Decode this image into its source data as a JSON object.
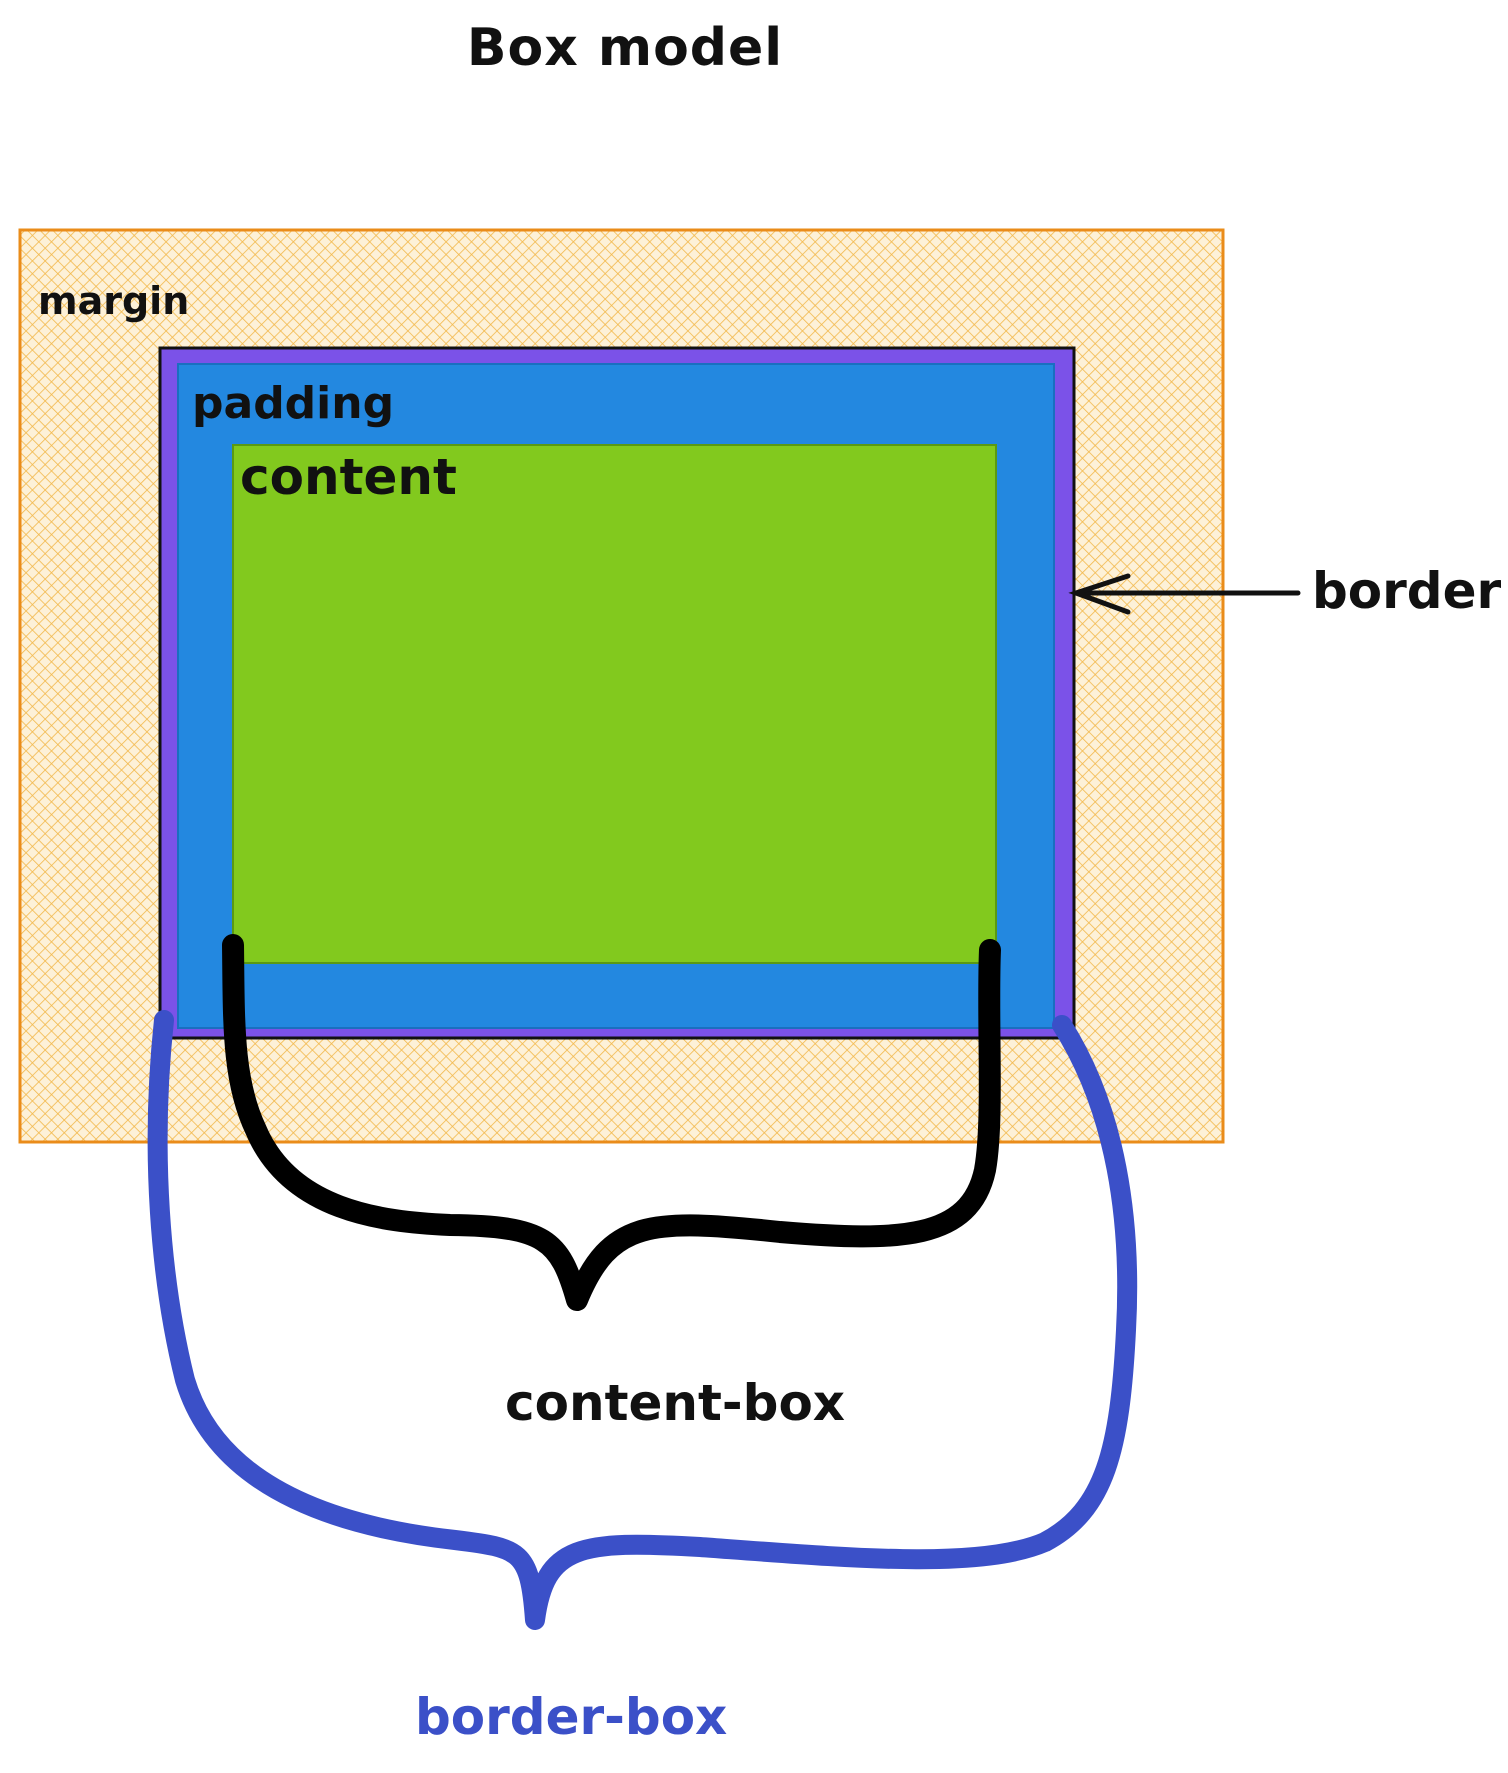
{
  "title": "Box model",
  "labels": {
    "margin": "margin",
    "padding": "padding",
    "content": "content",
    "border": "border",
    "content_box": "content-box",
    "border_box": "border-box"
  },
  "colors": {
    "margin_fill": "#fbe3b0",
    "margin_hatch": "#f2b84b",
    "margin_edge": "#ea8c1a",
    "border": "#7b52e8",
    "padding": "#2388e0",
    "content": "#82c91e",
    "content_box_brace": "#000000",
    "border_box_brace": "#3b50c8",
    "border_box_label": "#3b50c8"
  }
}
